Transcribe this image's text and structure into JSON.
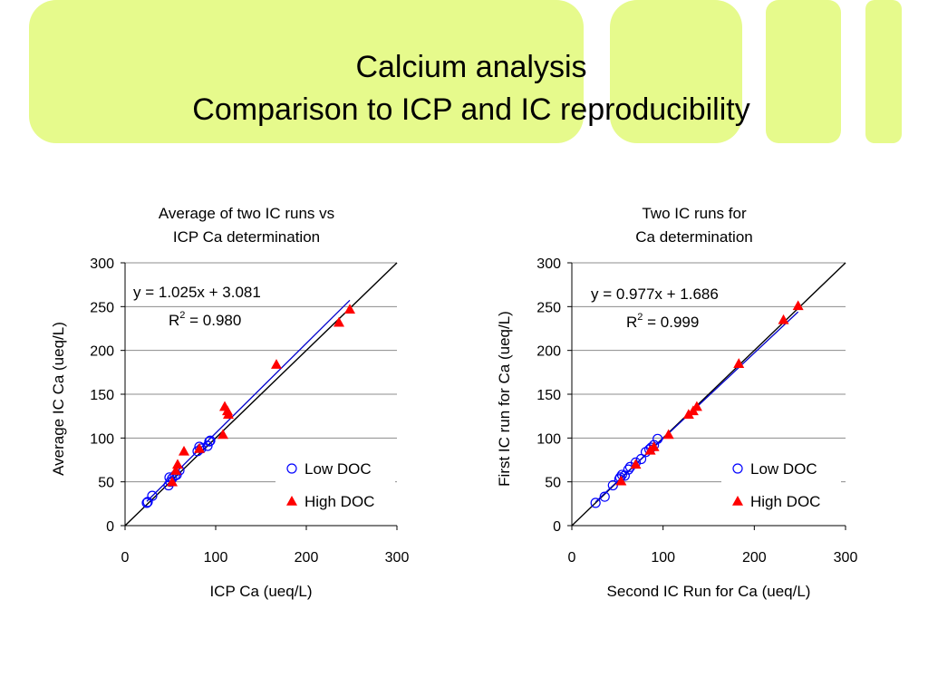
{
  "slide": {
    "title_line1": "Calcium analysis",
    "title_line2": "Comparison to ICP and IC reproducibility",
    "banner_color": "#e6fa8c"
  },
  "chart_data": [
    {
      "type": "scatter",
      "title_line1": "Average of two IC runs vs",
      "title_line2": "ICP Ca determination",
      "xlabel": "ICP Ca (ueq/L)",
      "ylabel": "Average IC Ca (ueq/L)",
      "xlim": [
        0,
        300
      ],
      "ylim": [
        0,
        300
      ],
      "xticks": [
        "0",
        "100",
        "200",
        "300"
      ],
      "yticks": [
        "0",
        "50",
        "100",
        "150",
        "200",
        "250",
        "300"
      ],
      "grid": "horizontal",
      "equation": "y = 1.025x + 3.081",
      "r2_prefix": "R",
      "r2_sup": "2",
      "r2_value": " = 0.980",
      "legend_position": "bottom-right",
      "series": [
        {
          "name": "Low DOC",
          "marker": "open-circle",
          "color": "#0000ff",
          "points": [
            [
              24,
              26
            ],
            [
              25,
              27
            ],
            [
              30,
              34
            ],
            [
              48,
              46
            ],
            [
              50,
              50
            ],
            [
              49,
              55
            ],
            [
              52,
              54
            ],
            [
              55,
              57
            ],
            [
              57,
              58
            ],
            [
              60,
              63
            ],
            [
              80,
              85
            ],
            [
              82,
              90
            ],
            [
              84,
              88
            ],
            [
              91,
              91
            ],
            [
              93,
              96
            ],
            [
              94,
              97
            ]
          ]
        },
        {
          "name": "High DOC",
          "marker": "filled-triangle",
          "color": "#ff0000",
          "points": [
            [
              52,
              50
            ],
            [
              56,
              63
            ],
            [
              58,
              70
            ],
            [
              65,
              85
            ],
            [
              82,
              88
            ],
            [
              108,
              104
            ],
            [
              110,
              136
            ],
            [
              113,
              131
            ],
            [
              114,
              127
            ],
            [
              167,
              184
            ],
            [
              236,
              232
            ],
            [
              248,
              247
            ]
          ]
        }
      ],
      "lines": [
        {
          "name": "identity",
          "color": "#000000",
          "from": [
            0,
            0
          ],
          "to": [
            300,
            300
          ]
        },
        {
          "name": "regression",
          "color": "#0000cc",
          "from": [
            24,
            27.68
          ],
          "to": [
            248,
            257.28
          ]
        }
      ]
    },
    {
      "type": "scatter",
      "title_line1": "Two IC runs for",
      "title_line2": "Ca determination",
      "xlabel": "Second IC Run for Ca (ueq/L)",
      "ylabel": "First IC run for Ca (ueq/L)",
      "xlim": [
        0,
        300
      ],
      "ylim": [
        0,
        300
      ],
      "xticks": [
        "0",
        "100",
        "200",
        "300"
      ],
      "yticks": [
        "0",
        "50",
        "100",
        "150",
        "200",
        "250",
        "300"
      ],
      "grid": "horizontal",
      "equation": "y = 0.977x + 1.686",
      "r2_prefix": "R",
      "r2_sup": "2",
      "r2_value": " = 0.999",
      "legend_position": "bottom-right",
      "series": [
        {
          "name": "Low DOC",
          "marker": "open-circle",
          "color": "#0000ff",
          "points": [
            [
              26,
              26
            ],
            [
              36,
              33
            ],
            [
              45,
              46
            ],
            [
              52,
              53
            ],
            [
              53,
              55
            ],
            [
              55,
              58
            ],
            [
              58,
              57
            ],
            [
              62,
              64
            ],
            [
              64,
              67
            ],
            [
              70,
              72
            ],
            [
              76,
              76
            ],
            [
              81,
              84
            ],
            [
              85,
              87
            ],
            [
              87,
              89
            ],
            [
              90,
              92
            ],
            [
              94,
              99
            ]
          ]
        },
        {
          "name": "High DOC",
          "marker": "filled-triangle",
          "color": "#ff0000",
          "points": [
            [
              54,
              51
            ],
            [
              70,
              70
            ],
            [
              86,
              86
            ],
            [
              90,
              90
            ],
            [
              106,
              104
            ],
            [
              128,
              127
            ],
            [
              133,
              131
            ],
            [
              137,
              136
            ],
            [
              183,
              185
            ],
            [
              232,
              235
            ],
            [
              248,
              251
            ]
          ]
        }
      ],
      "lines": [
        {
          "name": "identity",
          "color": "#000000",
          "from": [
            0,
            0
          ],
          "to": [
            300,
            300
          ]
        },
        {
          "name": "regression",
          "color": "#0000cc",
          "from": [
            26,
            27.09
          ],
          "to": [
            248,
            243.98
          ]
        }
      ]
    }
  ]
}
